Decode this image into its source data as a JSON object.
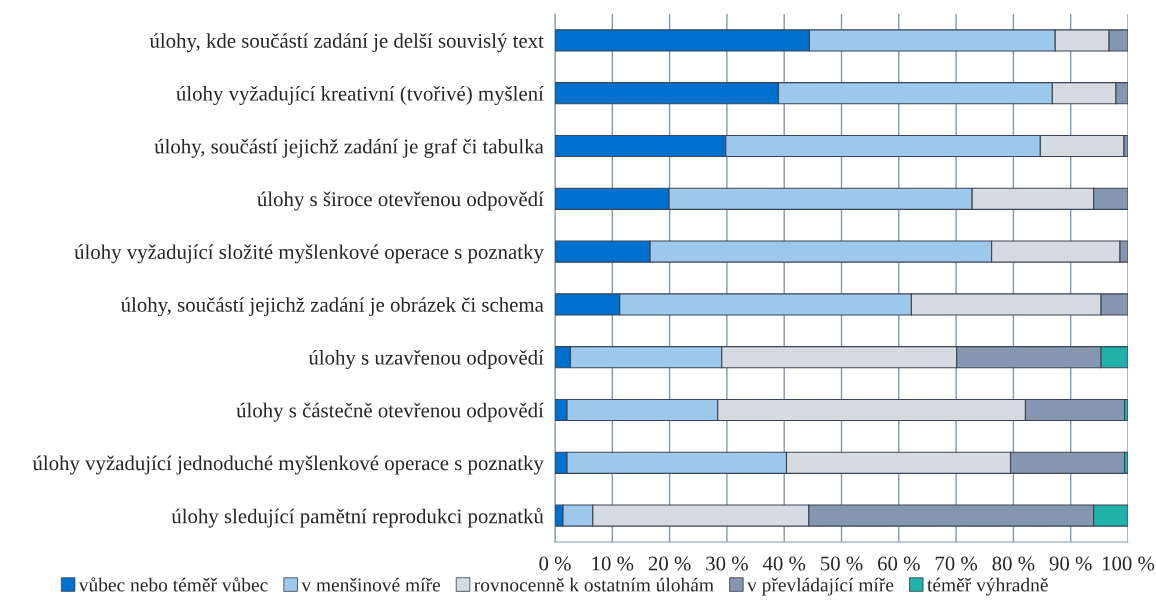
{
  "chart_data": {
    "type": "bar",
    "orientation": "horizontal",
    "stacked": true,
    "categories": [
      "úlohy, kde součástí zadání je delší souvislý text",
      "úlohy vyžadující kreativní (tvořivé) myšlení",
      "úlohy, součástí jejichž zadání je graf či tabulka",
      "úlohy s široce otevřenou odpovědí",
      "úlohy vyžadující složité myšlenkové operace s poznatky",
      "úlohy, součástí jejichž zadání je obrázek či schema",
      "úlohy s uzavřenou odpovědí",
      "úlohy s částečně otevřenou odpovědí",
      "úlohy vyžadující jednoduché myšlenkové operace s poznatky",
      "úlohy sledující pamětní reprodukci poznatků"
    ],
    "series": [
      {
        "name": "vůbec nebo téměř vůbec",
        "color": "#0070cf",
        "values": [
          44.4,
          39.0,
          29.8,
          19.9,
          16.6,
          11.3,
          2.7,
          2.1,
          2.1,
          1.4
        ]
      },
      {
        "name": "v menšinové míře",
        "color": "#9dc8ec",
        "values": [
          42.9,
          47.8,
          54.9,
          52.9,
          59.6,
          50.9,
          26.4,
          26.3,
          38.3,
          5.2
        ]
      },
      {
        "name": "rovnocenně k ostatním úlohám",
        "color": "#d6dae1",
        "values": [
          9.4,
          11.1,
          14.6,
          21.2,
          22.4,
          33.1,
          41.0,
          53.7,
          39.1,
          37.7
        ]
      },
      {
        "name": "v převládající míře",
        "color": "#8496b0",
        "values": [
          3.3,
          2.1,
          0.7,
          6.0,
          1.4,
          4.7,
          25.2,
          17.3,
          19.9,
          49.7
        ]
      },
      {
        "name": "téměř výhradně",
        "color": "#20b2a8",
        "values": [
          0,
          0,
          0,
          0,
          0,
          0,
          4.7,
          0.6,
          0.6,
          6.0
        ]
      }
    ],
    "xlim": [
      0,
      100
    ],
    "xticks": [
      {
        "value": 0,
        "label": "0 %"
      },
      {
        "value": 10,
        "label": "10 %"
      },
      {
        "value": 20,
        "label": "20 %"
      },
      {
        "value": 30,
        "label": "30 %"
      },
      {
        "value": 40,
        "label": "40 %"
      },
      {
        "value": 50,
        "label": "50 %"
      },
      {
        "value": 60,
        "label": "60 %"
      },
      {
        "value": 70,
        "label": "70 %"
      },
      {
        "value": 80,
        "label": "80 %"
      },
      {
        "value": 90,
        "label": "90 %"
      },
      {
        "value": 100,
        "label": "100 %"
      }
    ],
    "grid": "x",
    "legend": "bottom"
  }
}
